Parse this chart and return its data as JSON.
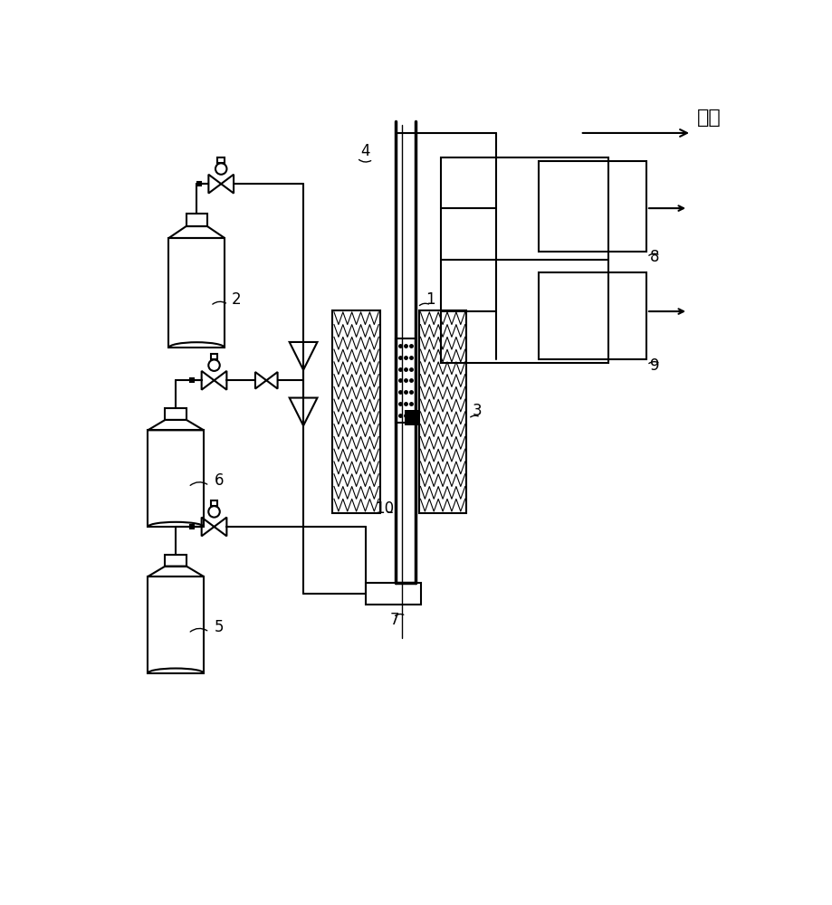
{
  "bg_color": "#ffffff",
  "lc": "#000000",
  "lw": 1.5,
  "fs": 12,
  "figw": 9.19,
  "figh": 10.0,
  "dpi": 100
}
